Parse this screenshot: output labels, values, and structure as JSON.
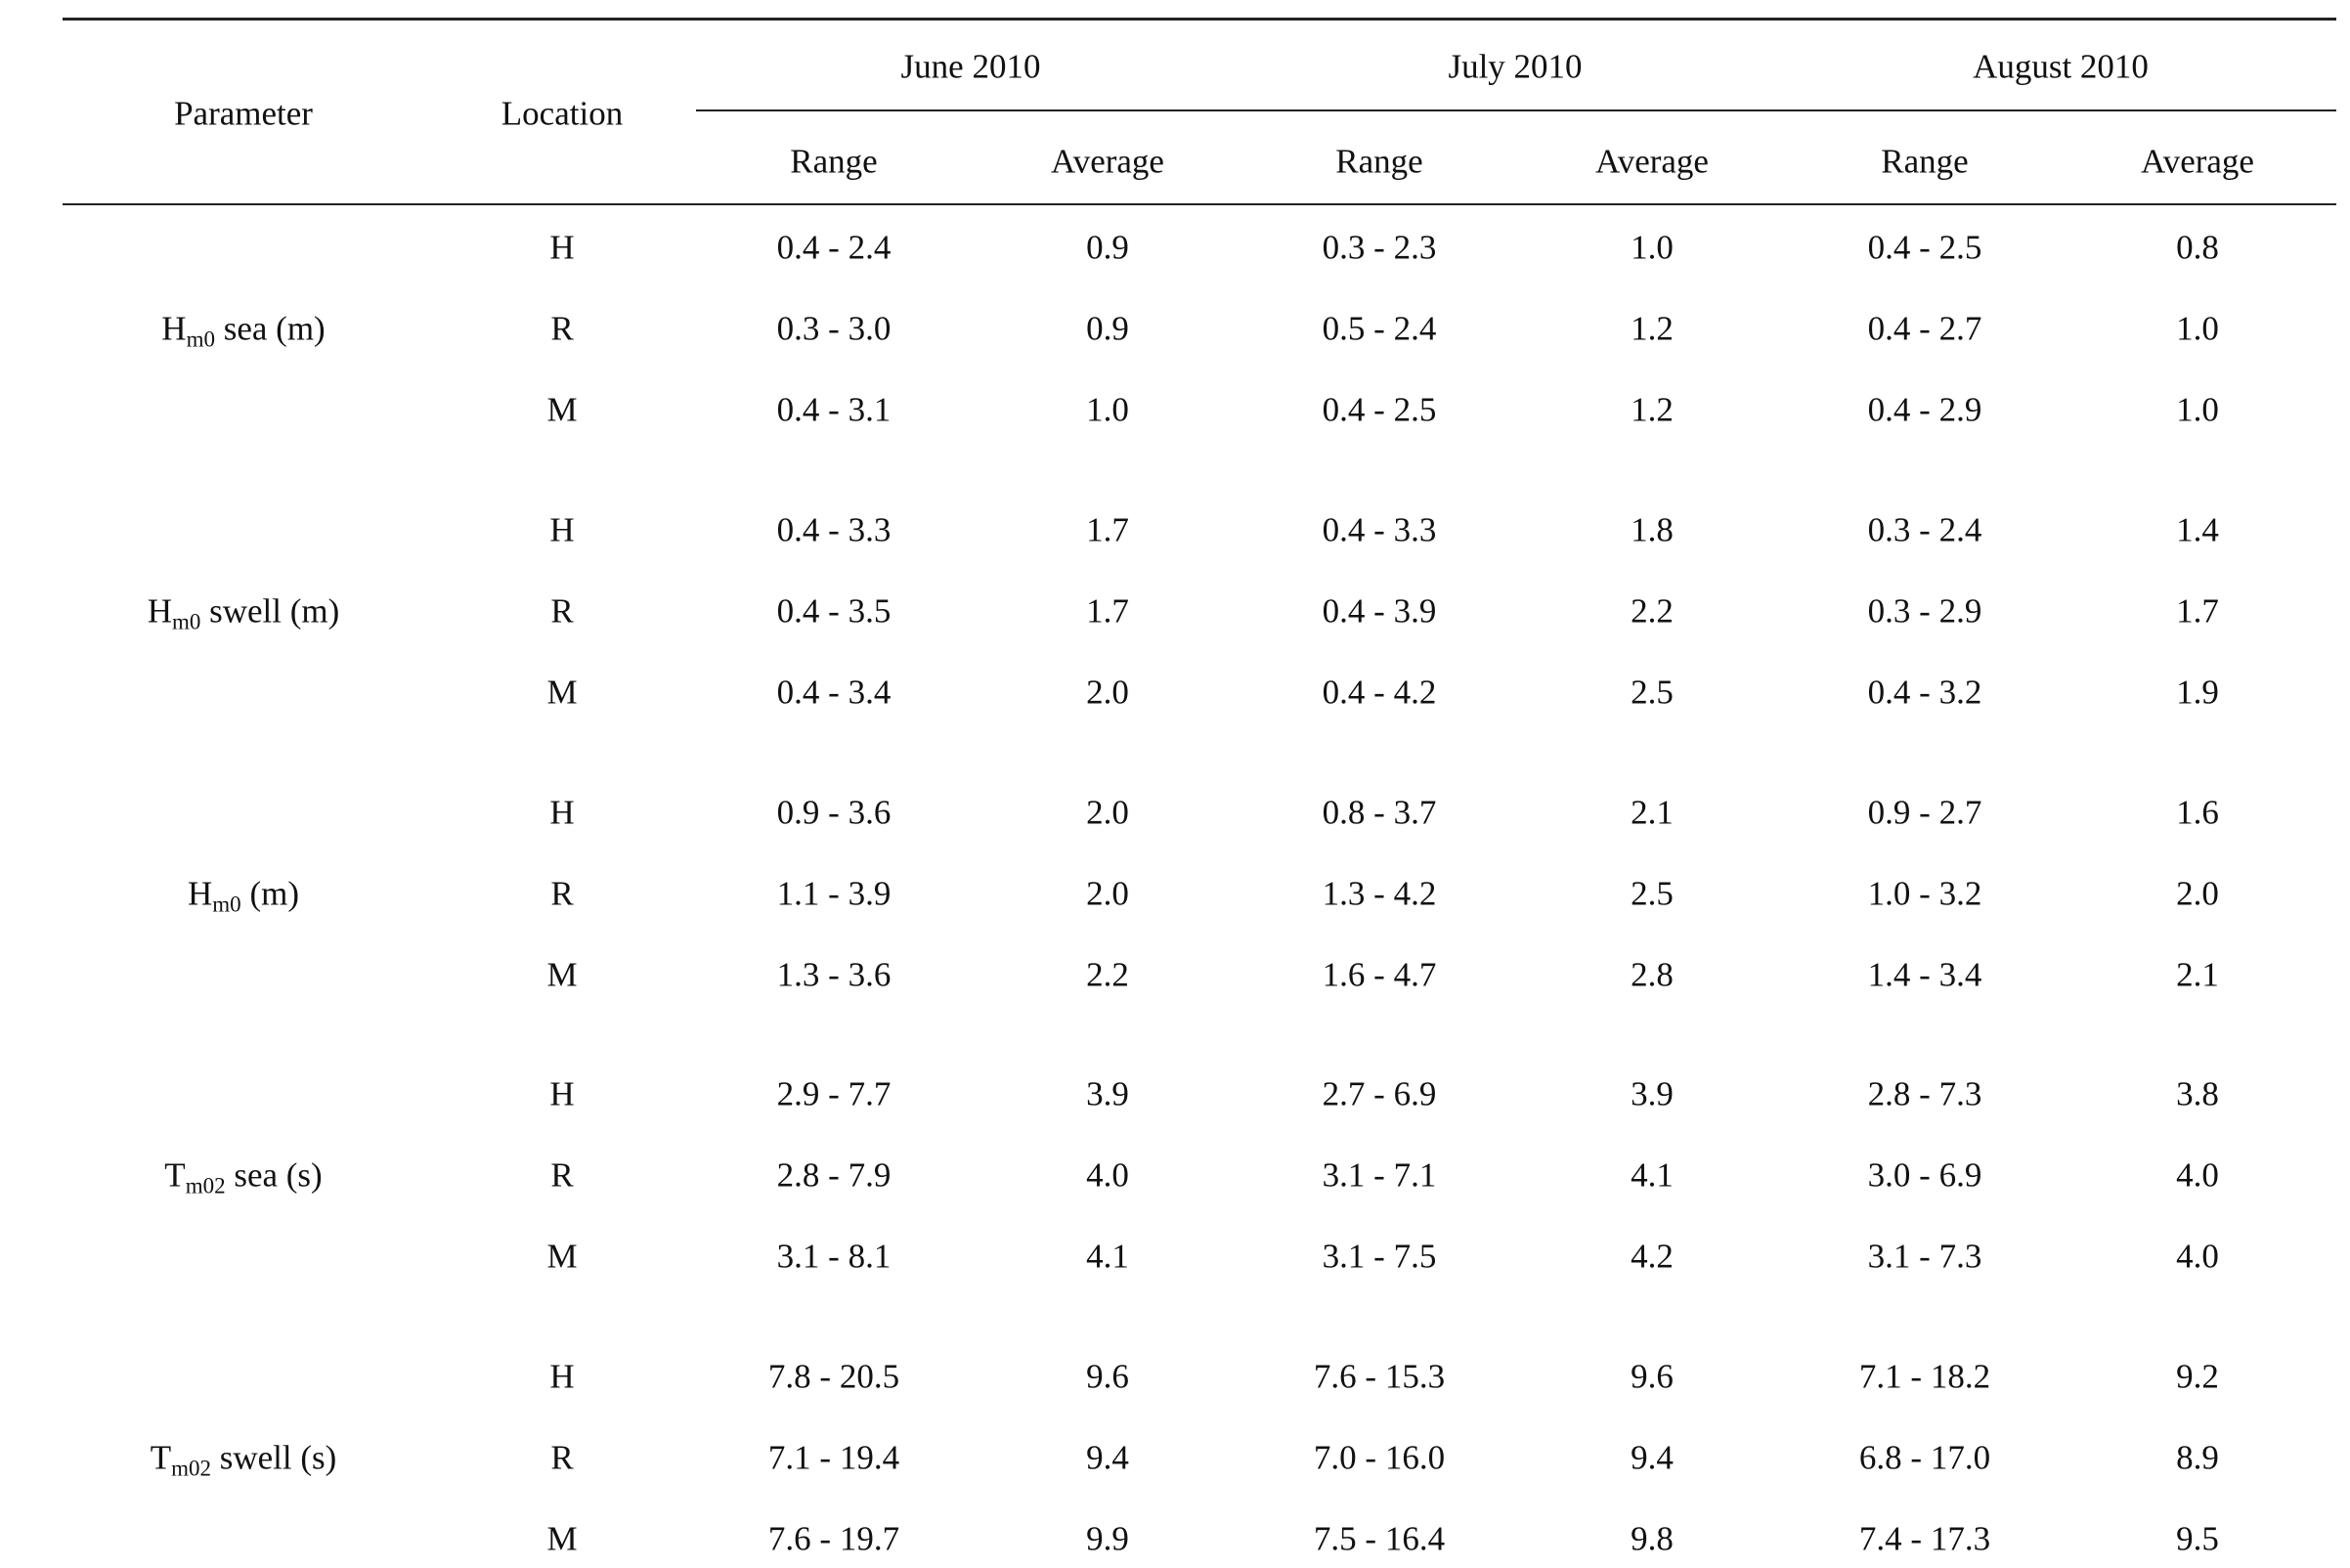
{
  "table": {
    "headers": {
      "parameter": "Parameter",
      "location": "Location",
      "months": [
        "June 2010",
        "July 2010",
        "August 2010"
      ],
      "range": "Range",
      "average": "Average"
    },
    "groups": [
      {
        "param": {
          "base": "H",
          "sub": "m0",
          "rest": " sea (m)"
        },
        "rows": [
          {
            "loc": "H",
            "cells": [
              "0.4 - 2.4",
              "0.9",
              "0.3 - 2.3",
              "1.0",
              "0.4 - 2.5",
              "0.8"
            ]
          },
          {
            "loc": "R",
            "cells": [
              "0.3 - 3.0",
              "0.9",
              "0.5 - 2.4",
              "1.2",
              "0.4 - 2.7",
              "1.0"
            ]
          },
          {
            "loc": "M",
            "cells": [
              "0.4 - 3.1",
              "1.0",
              "0.4 - 2.5",
              "1.2",
              "0.4 - 2.9",
              "1.0"
            ]
          }
        ]
      },
      {
        "param": {
          "base": "H",
          "sub": "m0",
          "rest": " swell (m)"
        },
        "rows": [
          {
            "loc": "H",
            "cells": [
              "0.4 - 3.3",
              "1.7",
              "0.4 - 3.3",
              "1.8",
              "0.3 - 2.4",
              "1.4"
            ]
          },
          {
            "loc": "R",
            "cells": [
              "0.4 - 3.5",
              "1.7",
              "0.4 - 3.9",
              "2.2",
              "0.3 - 2.9",
              "1.7"
            ]
          },
          {
            "loc": "M",
            "cells": [
              "0.4 - 3.4",
              "2.0",
              "0.4 - 4.2",
              "2.5",
              "0.4 - 3.2",
              "1.9"
            ]
          }
        ]
      },
      {
        "param": {
          "base": "H",
          "sub": "m0",
          "rest": " (m)"
        },
        "rows": [
          {
            "loc": "H",
            "cells": [
              "0.9 - 3.6",
              "2.0",
              "0.8 - 3.7",
              "2.1",
              "0.9 - 2.7",
              "1.6"
            ]
          },
          {
            "loc": "R",
            "cells": [
              "1.1 - 3.9",
              "2.0",
              "1.3 - 4.2",
              "2.5",
              "1.0 - 3.2",
              "2.0"
            ]
          },
          {
            "loc": "M",
            "cells": [
              "1.3 - 3.6",
              "2.2",
              "1.6 - 4.7",
              "2.8",
              "1.4 - 3.4",
              "2.1"
            ]
          }
        ]
      },
      {
        "param": {
          "base": "T",
          "sub": "m02",
          "rest": " sea (s)"
        },
        "rows": [
          {
            "loc": "H",
            "cells": [
              "2.9 - 7.7",
              "3.9",
              "2.7 - 6.9",
              "3.9",
              "2.8 - 7.3",
              "3.8"
            ]
          },
          {
            "loc": "R",
            "cells": [
              "2.8 - 7.9",
              "4.0",
              "3.1 - 7.1",
              "4.1",
              "3.0 - 6.9",
              "4.0"
            ]
          },
          {
            "loc": "M",
            "cells": [
              "3.1 - 8.1",
              "4.1",
              "3.1 - 7.5",
              "4.2",
              "3.1 - 7.3",
              "4.0"
            ]
          }
        ]
      },
      {
        "param": {
          "base": "T",
          "sub": "m02",
          "rest": " swell (s)"
        },
        "rows": [
          {
            "loc": "H",
            "cells": [
              "7.8 - 20.5",
              "9.6",
              "7.6 - 15.3",
              "9.6",
              "7.1 - 18.2",
              "9.2"
            ]
          },
          {
            "loc": "R",
            "cells": [
              "7.1 - 19.4",
              "9.4",
              "7.0 - 16.0",
              "9.4",
              "6.8 - 17.0",
              "8.9"
            ]
          },
          {
            "loc": "M",
            "cells": [
              "7.6 - 19.7",
              "9.9",
              "7.5 - 16.4",
              "9.8",
              "7.4 - 17.3",
              "9.5"
            ]
          }
        ]
      }
    ]
  }
}
